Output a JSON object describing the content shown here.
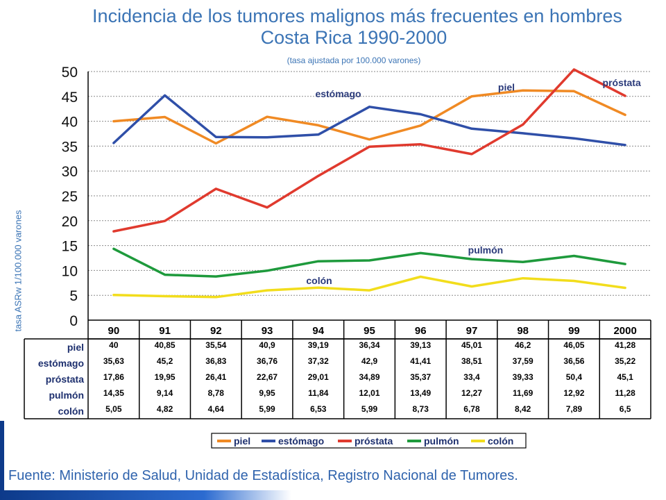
{
  "chart_data": {
    "type": "line",
    "title_line1": "Incidencia de los tumores malignos más frecuentes en hombres",
    "title_line2": "Costa Rica 1990-2000",
    "subtitle": "(tasa ajustada por 100.000 varones)",
    "ylabel": "tasa ASRw 1/100.000 varones",
    "xlabel": "",
    "ylim": [
      0,
      50
    ],
    "y_ticks": [
      "0",
      "5",
      "10",
      "15",
      "20",
      "25",
      "30",
      "35",
      "40",
      "45",
      "50"
    ],
    "grid": true,
    "legend_position": "bottom",
    "categories": [
      "90",
      "91",
      "92",
      "93",
      "94",
      "95",
      "96",
      "97",
      "98",
      "99",
      "2000"
    ],
    "series": [
      {
        "name": "piel",
        "color": "#f08a24",
        "values": [
          40,
          40.85,
          35.54,
          40.9,
          39.19,
          36.34,
          39.13,
          45.01,
          46.2,
          46.05,
          41.28
        ],
        "labels": [
          "40",
          "40,85",
          "35,54",
          "40,9",
          "39,19",
          "36,34",
          "39,13",
          "45,01",
          "46,2",
          "46,05",
          "41,28"
        ]
      },
      {
        "name": "estómago",
        "color": "#2f4fa8",
        "values": [
          35.63,
          45.2,
          36.83,
          36.76,
          37.32,
          42.9,
          41.41,
          38.51,
          37.59,
          36.56,
          35.22
        ],
        "labels": [
          "35,63",
          "45,2",
          "36,83",
          "36,76",
          "37,32",
          "42,9",
          "41,41",
          "38,51",
          "37,59",
          "36,56",
          "35,22"
        ]
      },
      {
        "name": "próstata",
        "color": "#e03a2e",
        "values": [
          17.86,
          19.95,
          26.41,
          22.67,
          29.01,
          34.89,
          35.37,
          33.4,
          39.33,
          50.4,
          45.1
        ],
        "labels": [
          "17,86",
          "19,95",
          "26,41",
          "22,67",
          "29,01",
          "34,89",
          "35,37",
          "33,4",
          "39,33",
          "50,4",
          "45,1"
        ]
      },
      {
        "name": "pulmón",
        "color": "#1e9a3c",
        "values": [
          14.35,
          9.14,
          8.78,
          9.95,
          11.84,
          12.01,
          13.49,
          12.27,
          11.69,
          12.92,
          11.28
        ],
        "labels": [
          "14,35",
          "9,14",
          "8,78",
          "9,95",
          "11,84",
          "12,01",
          "13,49",
          "12,27",
          "11,69",
          "12,92",
          "11,28"
        ]
      },
      {
        "name": "colón",
        "color": "#f2dd1c",
        "values": [
          5.05,
          4.82,
          4.64,
          5.99,
          6.53,
          5.99,
          8.73,
          6.78,
          8.42,
          7.89,
          6.5
        ],
        "labels": [
          "5,05",
          "4,82",
          "4,64",
          "5,99",
          "6,53",
          "5,99",
          "8,73",
          "6,78",
          "8,42",
          "7,89",
          "6,5"
        ]
      }
    ],
    "annotations": [
      {
        "text": "estómago",
        "series": "estómago"
      },
      {
        "text": "piel",
        "series": "piel"
      },
      {
        "text": "próstata",
        "series": "próstata"
      },
      {
        "text": "pulmón",
        "series": "pulmón"
      },
      {
        "text": "colón",
        "series": "colón"
      }
    ]
  },
  "source": "Fuente: Ministerio de Salud, Unidad de Estadística, Registro Nacional de Tumores."
}
